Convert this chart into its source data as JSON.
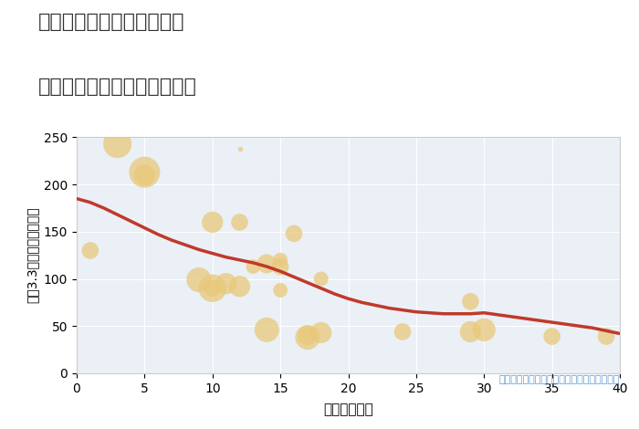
{
  "title_line1": "兵庫県丹波市春日町柚津の",
  "title_line2": "築年数別中古マンション価格",
  "xlabel": "築年数（年）",
  "ylabel": "坪（3.3㎡）単価（万円）",
  "annotation": "円の大きさは、取引のあった物件面積を示す",
  "background_color": "#ffffff",
  "plot_bg_color": "#eaf0f6",
  "grid_color": "#ffffff",
  "scatter_color": "#e8c87a",
  "scatter_alpha": 0.75,
  "line_color": "#c0392b",
  "line_width": 2.5,
  "xlim": [
    0,
    40
  ],
  "ylim": [
    0,
    250
  ],
  "xticks": [
    0,
    5,
    10,
    15,
    20,
    25,
    30,
    35,
    40
  ],
  "yticks": [
    0,
    50,
    100,
    150,
    200,
    250
  ],
  "scatter_x": [
    1,
    3,
    5,
    5,
    9,
    10,
    10,
    10,
    11,
    12,
    12,
    13,
    14,
    14,
    15,
    15,
    15,
    16,
    17,
    17,
    18,
    18,
    24,
    29,
    29,
    30,
    35,
    39
  ],
  "scatter_y": [
    130,
    243,
    213,
    210,
    99,
    90,
    90,
    160,
    95,
    92,
    160,
    113,
    116,
    46,
    120,
    113,
    88,
    148,
    38,
    40,
    43,
    100,
    44,
    76,
    44,
    46,
    39,
    39
  ],
  "scatter_size": [
    180,
    500,
    600,
    280,
    380,
    480,
    180,
    280,
    280,
    280,
    180,
    130,
    230,
    380,
    130,
    180,
    130,
    180,
    380,
    230,
    280,
    130,
    180,
    180,
    280,
    330,
    180,
    180
  ],
  "small_dot_x": [
    12
  ],
  "small_dot_y": [
    238
  ],
  "small_dot_size": [
    15
  ],
  "line_x": [
    0,
    1,
    2,
    3,
    4,
    5,
    6,
    7,
    8,
    9,
    10,
    11,
    12,
    13,
    14,
    15,
    16,
    17,
    18,
    19,
    20,
    21,
    22,
    23,
    24,
    25,
    26,
    27,
    28,
    29,
    30,
    31,
    32,
    33,
    34,
    35,
    36,
    37,
    38,
    39,
    40
  ],
  "line_y": [
    185,
    181,
    175,
    168,
    161,
    154,
    147,
    141,
    136,
    131,
    127,
    123,
    120,
    117,
    113,
    108,
    102,
    96,
    90,
    84,
    79,
    75,
    72,
    69,
    67,
    65,
    64,
    63,
    63,
    63,
    64,
    62,
    60,
    58,
    56,
    54,
    52,
    50,
    48,
    45,
    42
  ],
  "title_color": "#333333",
  "title_fontsize": 16,
  "axis_label_fontsize": 11,
  "tick_fontsize": 10,
  "annotation_color": "#5b9bd5",
  "annotation_fontsize": 8,
  "spine_color": "#cccccc"
}
